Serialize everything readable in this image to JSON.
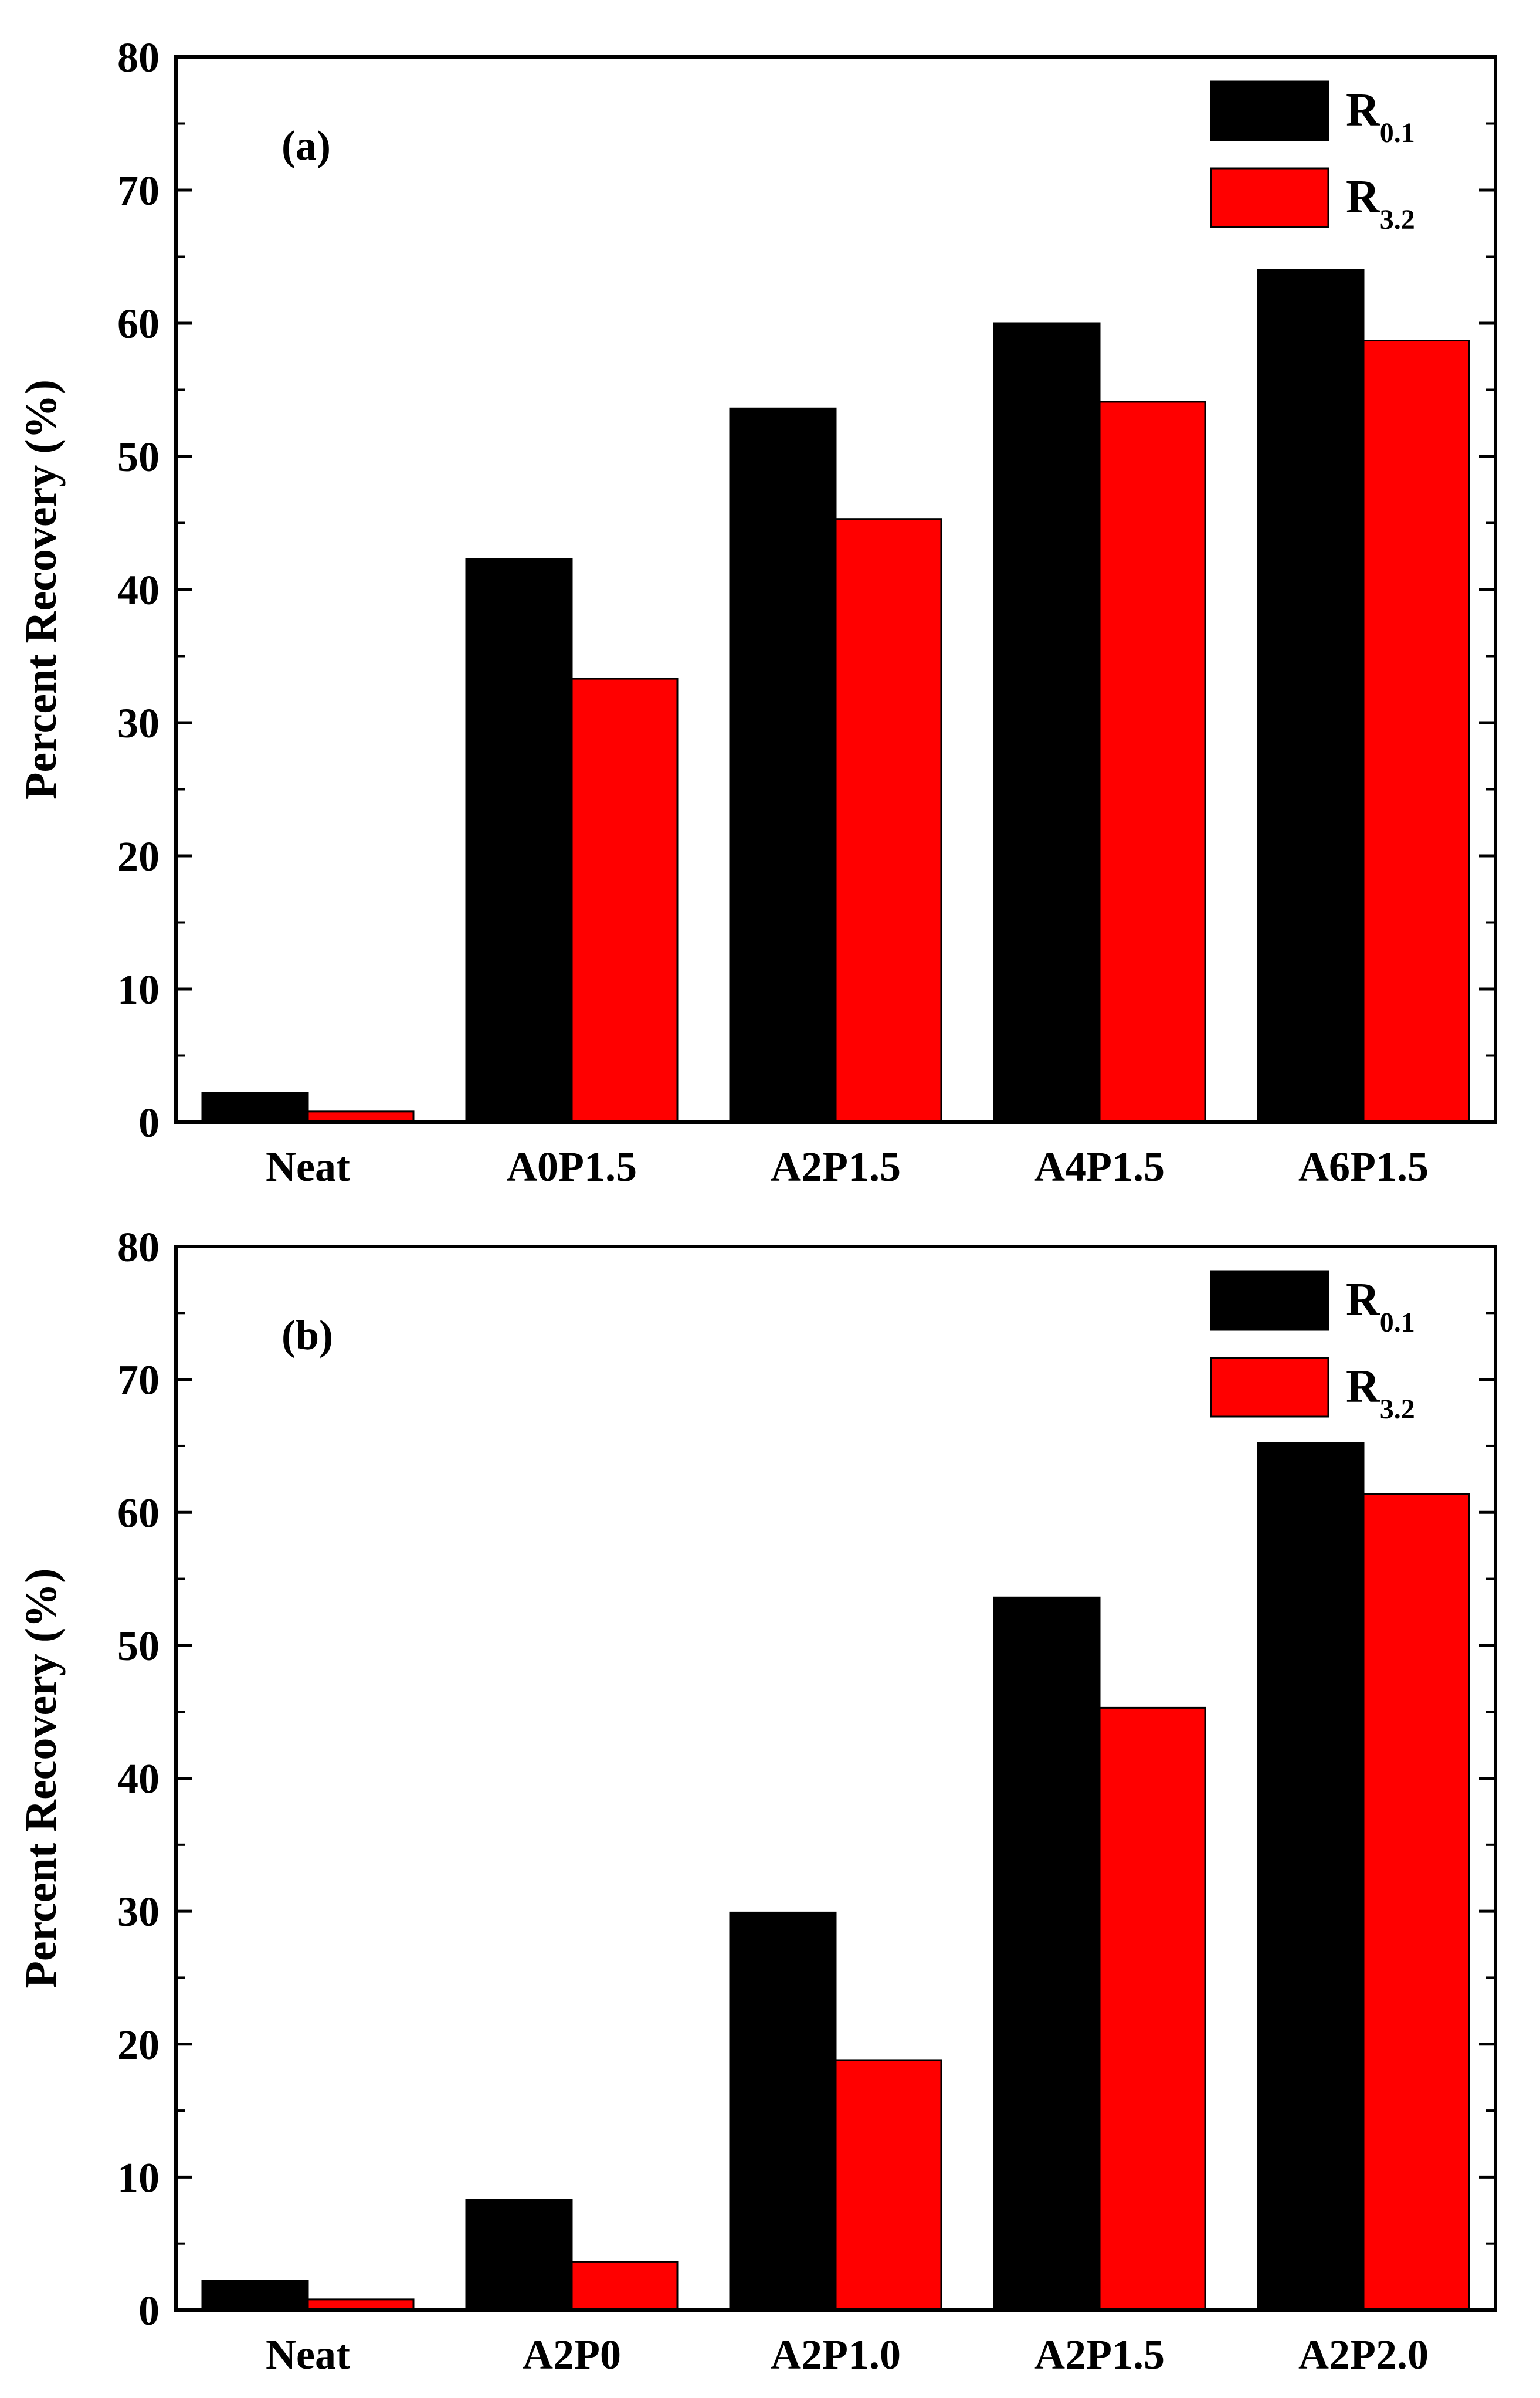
{
  "chart_data": [
    {
      "type": "bar",
      "panel_label": "(a)",
      "ylabel": "Percent Recovery (%)",
      "xlabel": "",
      "ylim": [
        0,
        80
      ],
      "yticks": [
        "0",
        "10",
        "20",
        "30",
        "40",
        "50",
        "60",
        "70",
        "80"
      ],
      "categories": [
        "Neat",
        "A0P1.5",
        "A2P1.5",
        "A4P1.5",
        "A6P1.5"
      ],
      "series": [
        {
          "name": "R0.1",
          "label_main": "R",
          "label_sub": "0.1",
          "color": "#000000",
          "values": [
            2.2,
            42.3,
            53.6,
            60.0,
            64.0
          ]
        },
        {
          "name": "R3.2",
          "label_main": "R",
          "label_sub": "3.2",
          "color": "#ff0000",
          "values": [
            0.8,
            33.3,
            45.3,
            54.1,
            58.7
          ]
        }
      ],
      "legend_position": "top-right",
      "grid": false
    },
    {
      "type": "bar",
      "panel_label": "(b)",
      "ylabel": "Percent Recovery (%)",
      "xlabel": "",
      "ylim": [
        0,
        80
      ],
      "yticks": [
        "0",
        "10",
        "20",
        "30",
        "40",
        "50",
        "60",
        "70",
        "80"
      ],
      "categories": [
        "Neat",
        "A2P0",
        "A2P1.0",
        "A2P1.5",
        "A2P2.0"
      ],
      "series": [
        {
          "name": "R0.1",
          "label_main": "R",
          "label_sub": "0.1",
          "color": "#000000",
          "values": [
            2.2,
            8.3,
            29.9,
            53.6,
            65.2
          ]
        },
        {
          "name": "R3.2",
          "label_main": "R",
          "label_sub": "3.2",
          "color": "#ff0000",
          "values": [
            0.8,
            3.6,
            18.8,
            45.3,
            61.4
          ]
        }
      ],
      "legend_position": "top-right",
      "grid": false
    }
  ]
}
